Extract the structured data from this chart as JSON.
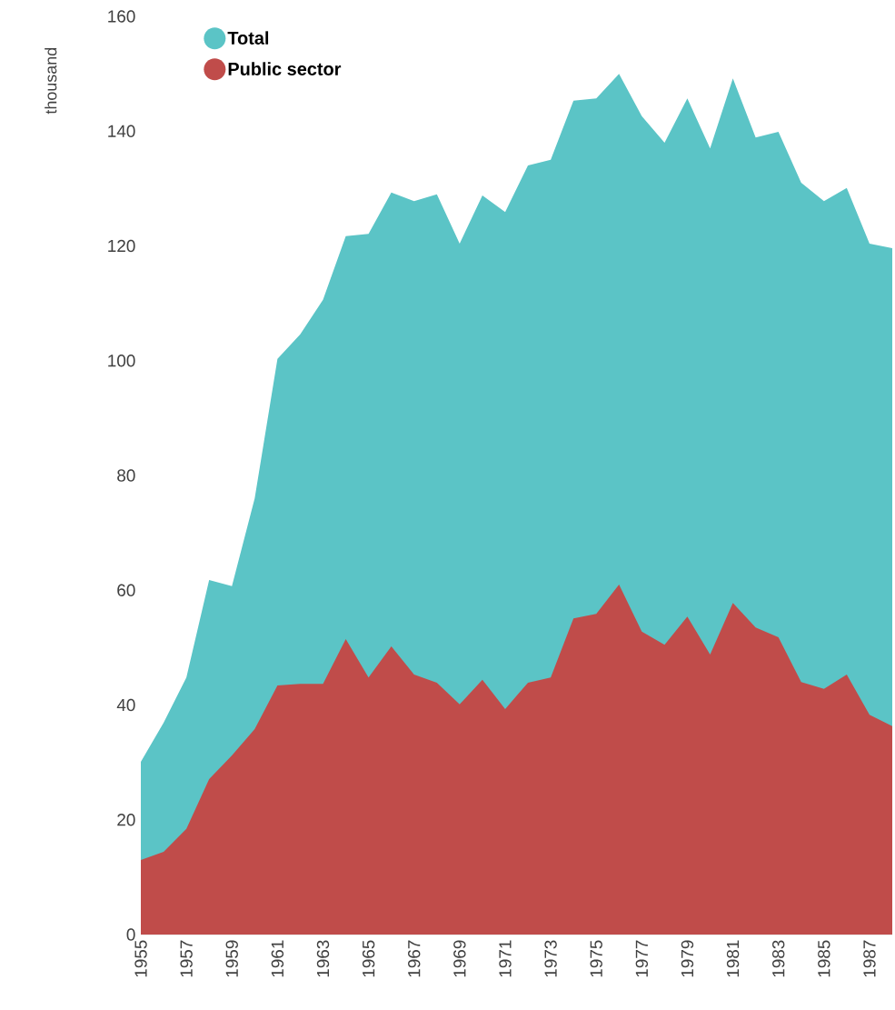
{
  "chart_data": {
    "type": "area",
    "ylabel": "thousand",
    "x": [
      1955,
      1956,
      1957,
      1958,
      1959,
      1960,
      1961,
      1962,
      1963,
      1964,
      1965,
      1966,
      1967,
      1968,
      1969,
      1970,
      1971,
      1972,
      1973,
      1974,
      1975,
      1976,
      1977,
      1978,
      1979,
      1980,
      1981,
      1982,
      1983,
      1984,
      1985,
      1986,
      1987,
      1988
    ],
    "series": [
      {
        "name": "Total",
        "color": "#5bc4c6",
        "values": [
          30.1,
          36.9,
          44.8,
          61.8,
          60.7,
          76.0,
          100.3,
          104.6,
          110.6,
          121.7,
          122.1,
          129.3,
          127.8,
          129.0,
          120.4,
          128.8,
          125.9,
          134.0,
          135.0,
          145.3,
          145.7,
          150.0,
          142.6,
          138.0,
          145.7,
          137.0,
          149.2,
          138.9,
          139.9,
          131.0,
          127.8,
          130.1,
          120.4,
          119.6
        ]
      },
      {
        "name": "Public sector",
        "color": "#c04c4a",
        "values": [
          13.0,
          14.4,
          18.4,
          27.1,
          31.2,
          35.8,
          43.4,
          43.7,
          43.7,
          51.5,
          44.8,
          50.2,
          45.3,
          43.9,
          40.1,
          44.4,
          39.3,
          43.9,
          44.8,
          55.1,
          55.9,
          61.0,
          52.8,
          50.5,
          55.4,
          48.8,
          57.8,
          53.5,
          51.8,
          44.0,
          42.8,
          45.3,
          38.3,
          36.3
        ]
      }
    ],
    "xlim": [
      1955,
      1988
    ],
    "ylim": [
      0,
      160
    ],
    "xticks": [
      1955,
      1957,
      1959,
      1961,
      1963,
      1965,
      1967,
      1969,
      1971,
      1973,
      1975,
      1977,
      1979,
      1981,
      1983,
      1985,
      1987
    ],
    "yticks": [
      0,
      20,
      40,
      60,
      80,
      100,
      120,
      140,
      160
    ],
    "legend": "top left",
    "grid": false
  }
}
